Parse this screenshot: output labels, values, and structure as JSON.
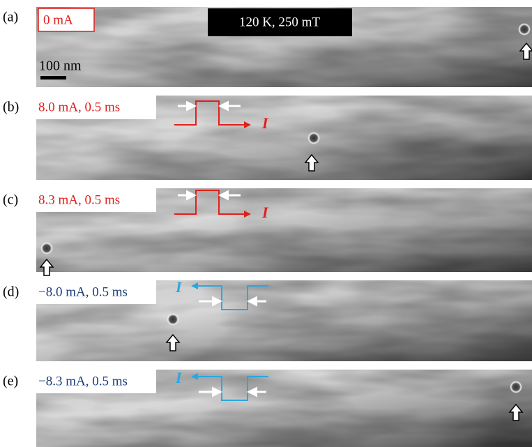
{
  "condition": "120 K, 250 mT",
  "scale_bar": "100 nm",
  "panels": [
    {
      "label": "(a)",
      "current": "0 mA"
    },
    {
      "label": "(b)",
      "current": "8.0 mA, 0.5 ms",
      "current_symbol": "I"
    },
    {
      "label": "(c)",
      "current": "8.3 mA, 0.5 ms",
      "current_symbol": "I"
    },
    {
      "label": "(d)",
      "current": "−8.0 mA, 0.5 ms",
      "current_symbol": "I"
    },
    {
      "label": "(e)",
      "current": "−8.3 mA, 0.5 ms",
      "current_symbol": "I"
    }
  ]
}
